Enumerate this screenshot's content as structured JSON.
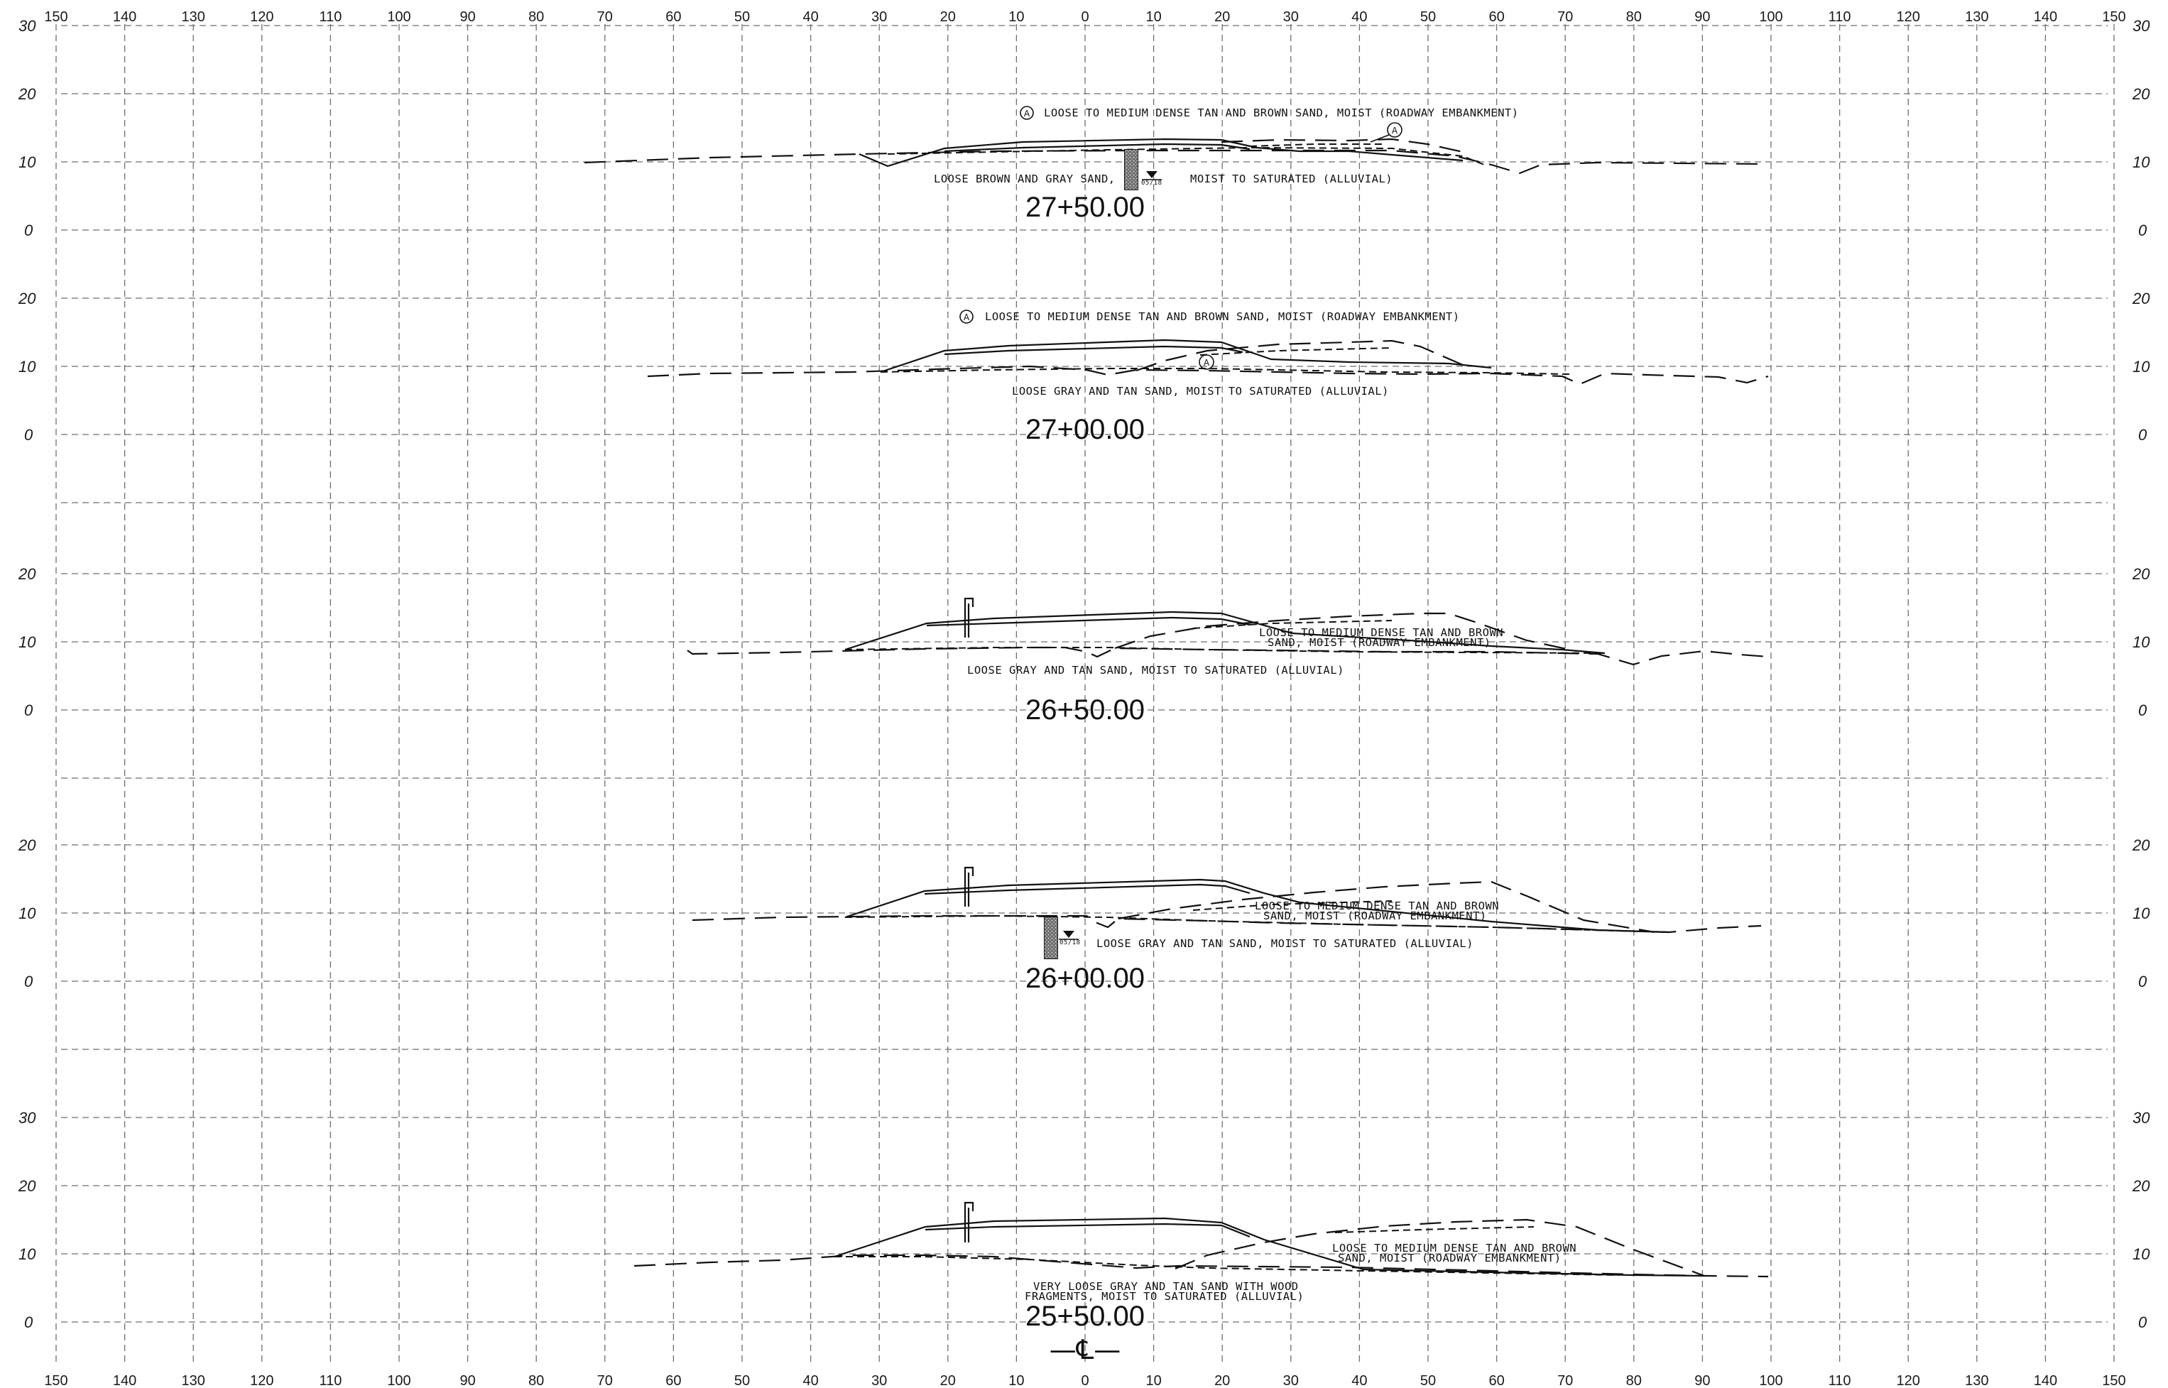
{
  "offset_axis": {
    "labels": [
      "150",
      "140",
      "130",
      "120",
      "110",
      "100",
      "90",
      "80",
      "70",
      "60",
      "50",
      "40",
      "30",
      "20",
      "10",
      "0",
      "10",
      "20",
      "30",
      "40",
      "50",
      "60",
      "70",
      "80",
      "90",
      "100",
      "110",
      "120",
      "130",
      "140",
      "150"
    ],
    "values": [
      -150,
      -140,
      -130,
      -120,
      -110,
      -100,
      -90,
      -80,
      -70,
      -60,
      -50,
      -40,
      -30,
      -20,
      -10,
      0,
      10,
      20,
      30,
      40,
      50,
      60,
      70,
      80,
      90,
      100,
      110,
      120,
      130,
      140,
      150
    ]
  },
  "sections": [
    {
      "station": "27+50.00",
      "elevation_labels": [
        "30",
        "20",
        "10",
        "0"
      ],
      "elevation_values": [
        30,
        20,
        10,
        0
      ],
      "embankment_label": "LOOSE TO MEDIUM DENSE TAN AND BROWN SAND, MOIST (ROADWAY EMBANKMENT)",
      "soil_marker": "A",
      "alluvial_label_left": "LOOSE BROWN AND GRAY SAND,",
      "alluvial_label_right": "MOIST TO SATURATED (ALLUVIAL)",
      "boring_tag": "05/18",
      "has_boring": true
    },
    {
      "station": "27+00.00",
      "elevation_labels": [
        "20",
        "10",
        "0"
      ],
      "elevation_values": [
        20,
        10,
        0
      ],
      "embankment_label": "LOOSE TO MEDIUM DENSE TAN AND BROWN SAND, MOIST (ROADWAY EMBANKMENT)",
      "soil_marker": "A",
      "alluvial_label": "LOOSE GRAY AND TAN SAND, MOIST TO SATURATED (ALLUVIAL)"
    },
    {
      "station": "26+50.00",
      "elevation_labels": [
        "20",
        "10",
        "0"
      ],
      "elevation_values": [
        20,
        10,
        0
      ],
      "embankment_label_1": "LOOSE TO MEDIUM DENSE TAN AND BROWN",
      "embankment_label_2": "SAND, MOIST (ROADWAY EMBANKMENT)",
      "alluvial_label": "LOOSE GRAY AND TAN SAND, MOIST TO SATURATED (ALLUVIAL)"
    },
    {
      "station": "26+00.00",
      "elevation_labels": [
        "20",
        "10",
        "0"
      ],
      "elevation_values": [
        20,
        10,
        0
      ],
      "embankment_label_1": "LOOSE TO MEDIUM DENSE TAN AND BROWN",
      "embankment_label_2": "SAND, MOIST (ROADWAY EMBANKMENT)",
      "alluvial_label": "LOOSE GRAY AND TAN SAND, MOIST TO SATURATED (ALLUVIAL)",
      "boring_tag": "05/18",
      "has_boring": true
    },
    {
      "station": "25+50.00",
      "elevation_labels": [
        "30",
        "20",
        "10",
        "0"
      ],
      "elevation_values": [
        30,
        20,
        10,
        0
      ],
      "embankment_label_1": "LOOSE TO MEDIUM DENSE TAN AND BROWN",
      "embankment_label_2": "SAND, MOIST (ROADWAY EMBANKMENT)",
      "alluvial_label_1": "VERY LOOSE GRAY AND TAN SAND WITH WOOD",
      "alluvial_label_2": "FRAGMENTS, MOIST TO SATURATED (ALLUVIAL)"
    }
  ],
  "centerline_symbol": "—℄—",
  "icons": {
    "boring": "soil-boring-icon",
    "water_table": "water-table-icon",
    "guardrail": "guardrail-post-icon",
    "soil_marker": "soil-unit-marker-icon"
  }
}
